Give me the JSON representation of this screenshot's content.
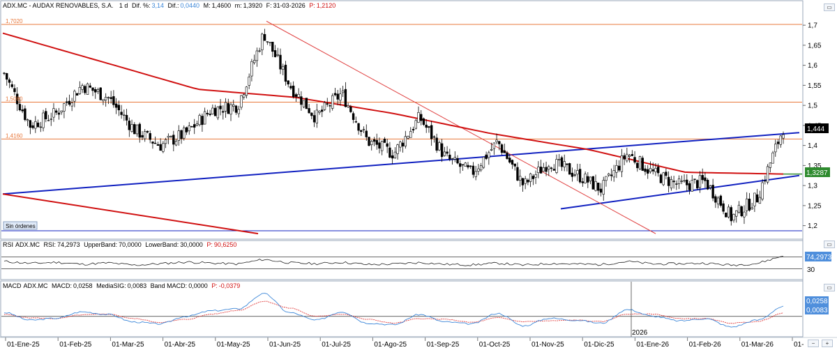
{
  "header": {
    "main": {
      "symbol": "ADX.MC",
      "name": "AUDAX RENOVABLES, S.A.",
      "period": "1 d",
      "dif_pct_label": "Dif. %:",
      "dif_pct": "3,14",
      "dif_label": "Dif.:",
      "dif": "0,0440",
      "max_label": "M:",
      "max": "1,4600",
      "min_label": "m:",
      "min": "1,3920",
      "date_label": "F:",
      "date": "31-03-2026",
      "p_label": "P:",
      "p": "1,2120"
    },
    "rsi": {
      "prefix": "RSI",
      "symbol": "ADX.MC",
      "label": "RSI:",
      "value": "74,2973",
      "upper_label": "UpperBand:",
      "upper": "70,0000",
      "lower_label": "LowerBand:",
      "lower": "30,0000",
      "p_label": "P:",
      "p": "90,6250"
    },
    "macd": {
      "prefix": "MACD",
      "symbol": "ADX.MC",
      "label": "MACD:",
      "value": "0,0258",
      "sig_label": "MediaSIG:",
      "sig": "0,0083",
      "band_label": "Band MACD:",
      "band": "0,0000",
      "p_label": "P:",
      "p": "-0,0379"
    }
  },
  "levels": [
    {
      "label": "1,7020",
      "value": 1.702
    },
    {
      "label": "1,5080",
      "value": 1.508
    },
    {
      "label": "1,4160",
      "value": 1.416
    }
  ],
  "sin_ordenes": "Sin órdenes",
  "badges": {
    "price": "1,444",
    "ma": "1,3287",
    "rsi_value": "74,2973",
    "rsi_lower": "30",
    "macd_value": "0,0258",
    "macd_signal": "0,0083"
  },
  "year_marker": "2026",
  "colors": {
    "ma_line": "#d01010",
    "trend_line": "#1020c0",
    "level_line": "#e8773a",
    "thin_red": "#e04040",
    "macd_line": "#3b86d8",
    "signal_line": "#e03a3a",
    "price_badge": "#000000",
    "ma_badge": "#2e8b2e",
    "indicator_badge": "#4f8fdc"
  },
  "chart_data": [
    {
      "type": "candlestick",
      "title": "ADX.MC - AUDAX RENOVABLES, S.A.",
      "x_axis_ticks": [
        "01-Ene-25",
        "01-Feb-25",
        "01-Mar-25",
        "01-Abr-25",
        "01-May-25",
        "01-Jun-25",
        "01-Jul-25",
        "01-Ago-25",
        "01-Sep-25",
        "01-Oct-25",
        "01-Nov-25",
        "01-Dic-25",
        "01-Ene-26",
        "01-Feb-26",
        "01-Mar-26",
        "01-"
      ],
      "y_axis_ticks": [
        "1,7",
        "1,65",
        "1,6",
        "1,55",
        "1,5",
        "1,45",
        "1,4",
        "1,35",
        "1,3",
        "1,25",
        "1,2"
      ],
      "y_range": [
        1.175,
        1.735
      ],
      "series": [
        {
          "name": "Close",
          "x": [
            "01-Ene-25",
            "15-Ene-25",
            "01-Feb-25",
            "15-Feb-25",
            "01-Mar-25",
            "15-Mar-25",
            "01-Abr-25",
            "15-Abr-25",
            "01-May-25",
            "15-May-25",
            "01-Jun-25",
            "15-Jun-25",
            "01-Jul-25",
            "15-Jul-25",
            "01-Ago-25",
            "15-Ago-25",
            "01-Sep-25",
            "15-Sep-25",
            "01-Oct-25",
            "15-Oct-25",
            "01-Nov-25",
            "15-Nov-25",
            "01-Dic-25",
            "15-Dic-25",
            "01-Ene-26",
            "15-Ene-26",
            "01-Feb-26",
            "15-Feb-26",
            "01-Mar-26",
            "15-Mar-26",
            "31-Mar-26"
          ],
          "values": [
            1.58,
            1.45,
            1.48,
            1.55,
            1.52,
            1.44,
            1.4,
            1.43,
            1.49,
            1.5,
            1.68,
            1.55,
            1.47,
            1.53,
            1.41,
            1.38,
            1.47,
            1.37,
            1.33,
            1.41,
            1.3,
            1.36,
            1.33,
            1.29,
            1.38,
            1.33,
            1.3,
            1.31,
            1.22,
            1.27,
            1.444
          ]
        },
        {
          "name": "MA",
          "x": [
            "01-Ene-25",
            "01-Mar-25",
            "01-May-25",
            "01-Jul-25",
            "01-Sep-25",
            "01-Nov-25",
            "01-Ene-26",
            "01-Mar-26",
            "31-Mar-26"
          ],
          "values": [
            1.68,
            1.61,
            1.54,
            1.52,
            1.48,
            1.43,
            1.39,
            1.333,
            1.3287
          ]
        }
      ]
    },
    {
      "type": "line",
      "title": "RSI ADX.MC",
      "series": [
        {
          "name": "RSI",
          "values": [
            55,
            48,
            52,
            45,
            50,
            42,
            47,
            53,
            49,
            46,
            62,
            50,
            47,
            52,
            44,
            46,
            51,
            45,
            43,
            49,
            42,
            48,
            46,
            44,
            55,
            46,
            47,
            49,
            42,
            48,
            74.2973
          ]
        }
      ],
      "bands": {
        "upper": 70,
        "lower": 30
      }
    },
    {
      "type": "line",
      "title": "MACD ADX.MC",
      "series": [
        {
          "name": "MACD",
          "values": [
            0.01,
            -0.01,
            -0.005,
            0.012,
            0.005,
            -0.015,
            -0.02,
            0.0,
            0.015,
            0.02,
            0.06,
            0.01,
            -0.01,
            0.012,
            -0.018,
            -0.022,
            0.005,
            -0.015,
            -0.02,
            0.008,
            -0.025,
            -0.005,
            -0.01,
            -0.018,
            0.018,
            0.0,
            -0.012,
            -0.006,
            -0.028,
            -0.01,
            0.0258
          ]
        },
        {
          "name": "MediaSIG",
          "values": [
            0.005,
            -0.004,
            -0.006,
            0.004,
            0.006,
            -0.006,
            -0.016,
            -0.008,
            0.006,
            0.016,
            0.04,
            0.022,
            0.0,
            0.006,
            -0.008,
            -0.018,
            -0.006,
            -0.008,
            -0.016,
            -0.004,
            -0.014,
            -0.012,
            -0.01,
            -0.014,
            0.006,
            0.006,
            -0.006,
            -0.006,
            -0.018,
            -0.014,
            0.0083
          ]
        }
      ],
      "band": 0
    }
  ]
}
